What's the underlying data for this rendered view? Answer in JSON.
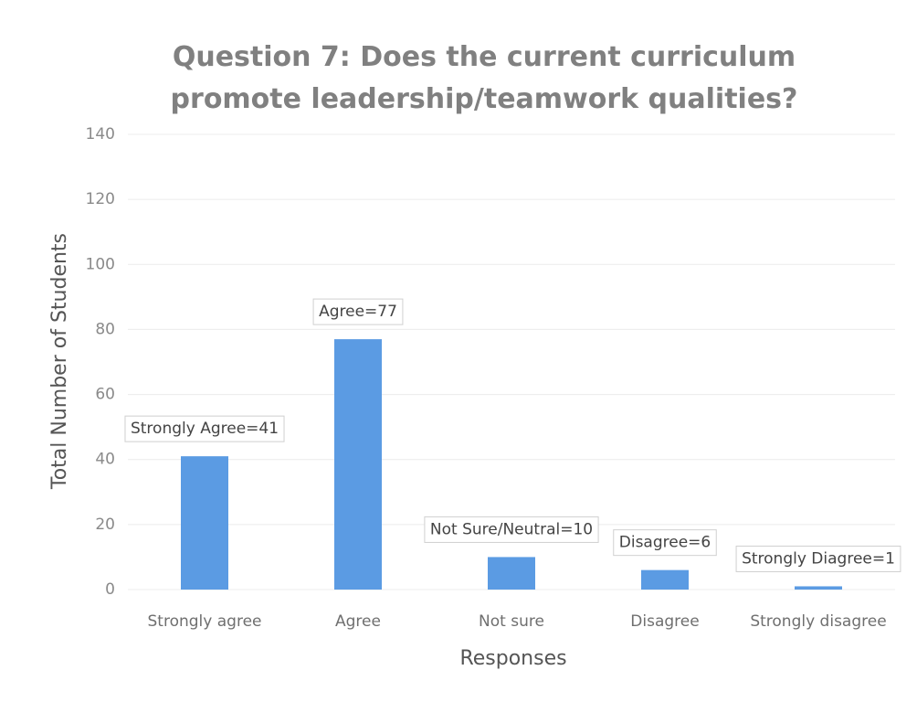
{
  "chart_data": {
    "type": "bar",
    "title": "Question 7: Does the current curriculum promote leadership/teamwork qualities?",
    "x_label": "Responses",
    "y_label": "Total Number of Students",
    "categories": [
      "Strongly agree",
      "Agree",
      "Not sure",
      "Disagree",
      "Strongly disagree"
    ],
    "values": [
      41,
      77,
      10,
      6,
      1
    ],
    "value_labels": [
      "Strongly Agree=41",
      "Agree=77",
      "Not Sure/Neutral=10",
      "Disagree=6",
      "Strongly Diagree=1"
    ],
    "color": "#5b9be3",
    "ylim": [
      0,
      140
    ],
    "yticks": [
      0,
      20,
      40,
      60,
      80,
      100,
      120,
      140
    ],
    "grid": true
  }
}
